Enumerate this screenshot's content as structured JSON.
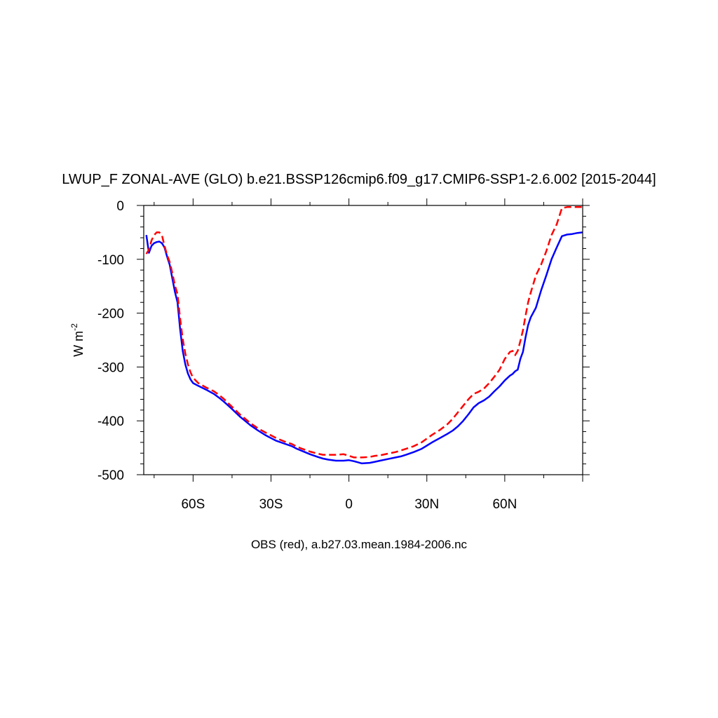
{
  "chart_data": {
    "type": "line",
    "title": "LWUP_F ZONAL-AVE (GLO) b.e21.BSSP126cmip6.f09_g17.CMIP6-SSP1-2.6.002 [2015-2044]",
    "xlabel": "OBS (red), a.b27.03.mean.1984-2006.nc",
    "ylabel": "W m",
    "ylabel_exponent": "-2",
    "xlim": [
      -79,
      90
    ],
    "ylim": [
      -500,
      0
    ],
    "xticks": [
      -60,
      -30,
      0,
      30,
      60
    ],
    "xtick_labels": [
      "60S",
      "30S",
      "0",
      "30N",
      "60N"
    ],
    "yticks": [
      0,
      -100,
      -200,
      -300,
      -400,
      -500
    ],
    "ytick_labels": [
      "0",
      "-100",
      "-200",
      "-300",
      "-400",
      "-500"
    ],
    "grid": false,
    "series": [
      {
        "color": "#0000ff",
        "style": "solid",
        "x": [
          -78,
          -77,
          -76,
          -75,
          -74,
          -73,
          -72,
          -71,
          -70,
          -69,
          -68,
          -67,
          -66,
          -65,
          -64,
          -63,
          -62,
          -61,
          -60,
          -58,
          -55,
          -52,
          -50,
          -48,
          -45,
          -42,
          -40,
          -38,
          -35,
          -32,
          -30,
          -28,
          -25,
          -22,
          -20,
          -18,
          -15,
          -12,
          -10,
          -8,
          -5,
          -2,
          0,
          2,
          5,
          8,
          10,
          12,
          15,
          18,
          20,
          22,
          25,
          28,
          30,
          32,
          35,
          38,
          40,
          42,
          44,
          46,
          48,
          50,
          52,
          54,
          56,
          58,
          60,
          62,
          63,
          64,
          65,
          66,
          67,
          68,
          69,
          70,
          72,
          74,
          76,
          78,
          80,
          82,
          84,
          86,
          88,
          90
        ],
        "y": [
          -55,
          -88,
          -75,
          -70,
          -68,
          -67,
          -70,
          -78,
          -95,
          -110,
          -135,
          -160,
          -180,
          -230,
          -270,
          -295,
          -312,
          -323,
          -330,
          -335,
          -342,
          -350,
          -357,
          -365,
          -378,
          -392,
          -400,
          -408,
          -418,
          -427,
          -432,
          -437,
          -442,
          -447,
          -452,
          -456,
          -462,
          -467,
          -470,
          -472,
          -474,
          -474,
          -473,
          -475,
          -479,
          -478,
          -476,
          -474,
          -471,
          -468,
          -466,
          -463,
          -458,
          -452,
          -446,
          -440,
          -432,
          -424,
          -418,
          -410,
          -400,
          -388,
          -375,
          -367,
          -362,
          -355,
          -345,
          -336,
          -325,
          -316,
          -313,
          -308,
          -305,
          -285,
          -272,
          -245,
          -222,
          -208,
          -190,
          -158,
          -130,
          -100,
          -78,
          -57,
          -54,
          -53,
          -51,
          -50
        ]
      },
      {
        "color": "#ff0000",
        "style": "dashed",
        "x": [
          -78,
          -77,
          -76,
          -75,
          -74,
          -73,
          -72,
          -71,
          -70,
          -69,
          -68,
          -67,
          -66,
          -65,
          -64,
          -63,
          -62,
          -61,
          -60,
          -58,
          -55,
          -52,
          -50,
          -48,
          -45,
          -42,
          -40,
          -38,
          -35,
          -32,
          -30,
          -28,
          -25,
          -22,
          -20,
          -18,
          -15,
          -12,
          -10,
          -8,
          -5,
          -2,
          0,
          2,
          5,
          8,
          10,
          12,
          15,
          18,
          20,
          22,
          25,
          28,
          30,
          32,
          35,
          38,
          40,
          42,
          44,
          46,
          48,
          50,
          52,
          54,
          56,
          58,
          60,
          62,
          63,
          64,
          65,
          66,
          67,
          68,
          69,
          70,
          72,
          74,
          76,
          78,
          80,
          82,
          84,
          86,
          88,
          90
        ],
        "y": [
          -90,
          -82,
          -65,
          -55,
          -50,
          -50,
          -55,
          -75,
          -92,
          -105,
          -125,
          -148,
          -165,
          -210,
          -248,
          -275,
          -295,
          -310,
          -320,
          -330,
          -338,
          -345,
          -352,
          -360,
          -374,
          -388,
          -396,
          -404,
          -414,
          -422,
          -427,
          -432,
          -438,
          -443,
          -448,
          -452,
          -457,
          -461,
          -463,
          -463,
          -463,
          -462,
          -465,
          -468,
          -468,
          -467,
          -465,
          -464,
          -461,
          -458,
          -455,
          -452,
          -447,
          -440,
          -433,
          -426,
          -417,
          -406,
          -396,
          -384,
          -372,
          -360,
          -350,
          -346,
          -340,
          -330,
          -318,
          -305,
          -285,
          -272,
          -270,
          -278,
          -270,
          -252,
          -232,
          -205,
          -180,
          -162,
          -130,
          -110,
          -85,
          -55,
          -35,
          -5,
          -3,
          -3,
          -3,
          -3
        ]
      }
    ]
  }
}
